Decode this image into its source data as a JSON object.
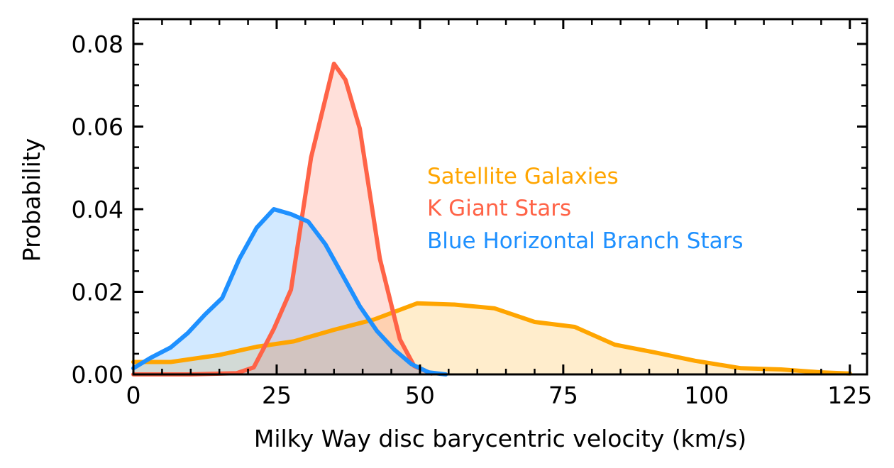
{
  "chart_data": {
    "type": "area",
    "title": "",
    "xlabel": "Milky Way disc barycentric velocity (km/s)",
    "ylabel": "Probability",
    "xlim": [
      0,
      128
    ],
    "ylim": [
      0,
      0.086
    ],
    "xticks": [
      0,
      25,
      50,
      75,
      100,
      125
    ],
    "xtick_labels": [
      "0",
      "25",
      "50",
      "75",
      "100",
      "125"
    ],
    "yticks": [
      0.0,
      0.02,
      0.04,
      0.06,
      0.08
    ],
    "ytick_labels": [
      "0.00",
      "0.02",
      "0.04",
      "0.06",
      "0.08"
    ],
    "grid": false,
    "legend_position": "center-right",
    "series": [
      {
        "name": "Satellite Galaxies",
        "color": "#FFA500",
        "x": [
          0,
          6.5,
          15,
          21.5,
          28,
          35,
          42,
          49.5,
          56,
          63,
          70,
          77,
          84,
          91,
          98,
          106,
          113,
          120,
          125
        ],
        "y": [
          0.003,
          0.003,
          0.0047,
          0.0067,
          0.008,
          0.0108,
          0.0133,
          0.0172,
          0.0169,
          0.016,
          0.0127,
          0.0115,
          0.0072,
          0.0053,
          0.0033,
          0.0015,
          0.0012,
          0.0005,
          0.0002
        ]
      },
      {
        "name": "K Giant Stars",
        "color": "#FF6347",
        "x": [
          0,
          10,
          18,
          21,
          24.5,
          27.5,
          31,
          35,
          37,
          39.5,
          43,
          46.5,
          49,
          52
        ],
        "y": [
          0.0,
          0.0,
          0.0003,
          0.0017,
          0.011,
          0.0205,
          0.0525,
          0.0752,
          0.0713,
          0.0595,
          0.028,
          0.0085,
          0.002,
          0.0002
        ]
      },
      {
        "name": "Blue Horizontal Branch Stars",
        "color": "#1E90FF",
        "x": [
          0,
          3,
          6.5,
          9.5,
          12.5,
          15.5,
          18.5,
          21.5,
          24.5,
          27.5,
          30.5,
          33.5,
          36.5,
          39.5,
          42.5,
          45.5,
          48.5,
          51.5,
          54.5
        ],
        "y": [
          0.0015,
          0.004,
          0.0065,
          0.01,
          0.0145,
          0.0185,
          0.028,
          0.0355,
          0.04,
          0.0388,
          0.037,
          0.0315,
          0.024,
          0.0165,
          0.0105,
          0.006,
          0.0025,
          0.0005,
          0.0
        ]
      }
    ]
  }
}
